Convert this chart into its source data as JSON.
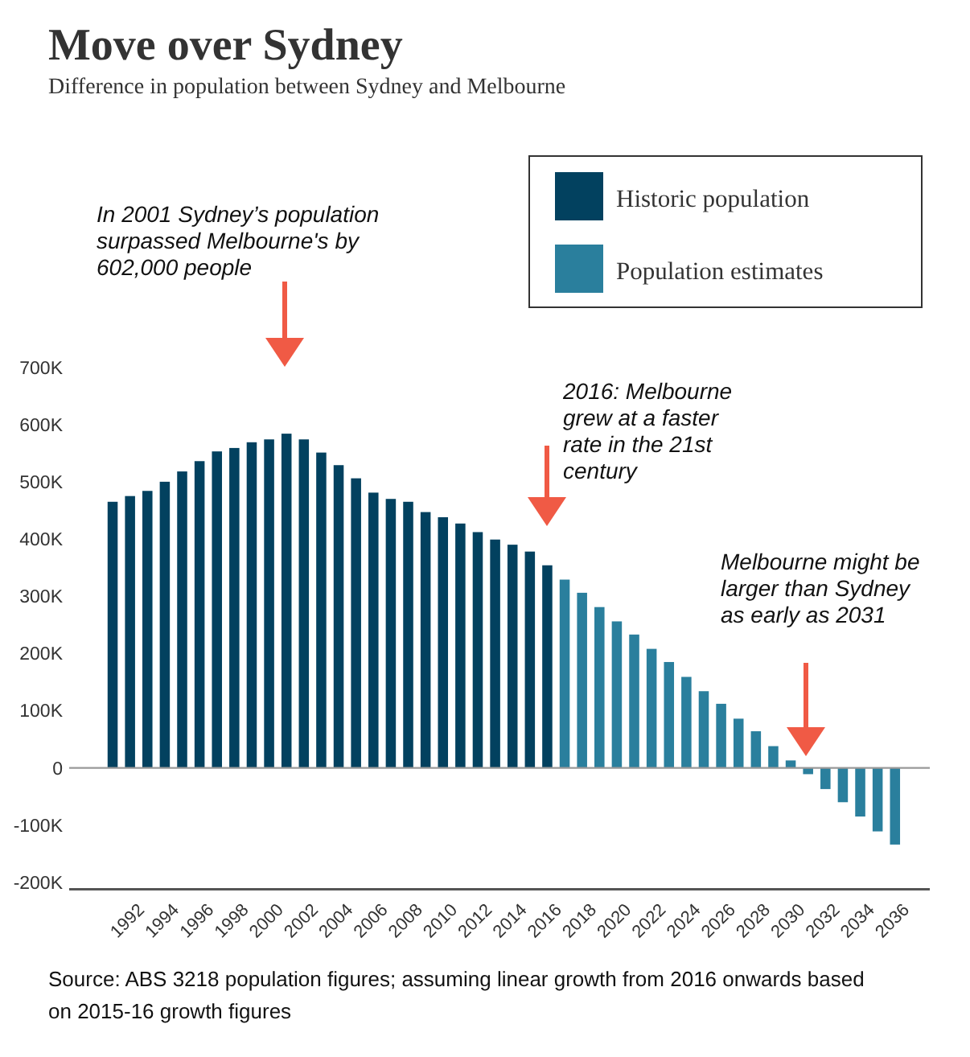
{
  "chart_data": {
    "type": "bar",
    "title": "Move over Sydney",
    "subtitle": "Difference in population between Sydney and Melbourne",
    "series": [
      {
        "name": "Historic population",
        "color": "#02415f",
        "x": [
          1991,
          1992,
          1993,
          1994,
          1995,
          1996,
          1997,
          1998,
          1999,
          2000,
          2001,
          2002,
          2003,
          2004,
          2005,
          2006,
          2007,
          2008,
          2009,
          2010,
          2011,
          2012,
          2013,
          2014,
          2015,
          2016
        ],
        "values": [
          465000,
          475000,
          484000,
          500000,
          518000,
          536000,
          553000,
          559000,
          569000,
          574000,
          584000,
          574000,
          551000,
          529000,
          506000,
          481000,
          470000,
          465000,
          447000,
          438000,
          427000,
          412000,
          399000,
          390000,
          378000,
          354000
        ]
      },
      {
        "name": "Population estimates",
        "color": "#2a7f9d",
        "x": [
          2017,
          2018,
          2019,
          2020,
          2021,
          2022,
          2023,
          2024,
          2025,
          2026,
          2027,
          2028,
          2029,
          2030,
          2031,
          2032,
          2033,
          2034,
          2035,
          2036
        ],
        "values": [
          329000,
          306000,
          281000,
          256000,
          233000,
          208000,
          185000,
          159000,
          134000,
          112000,
          86000,
          64000,
          38000,
          13000,
          -11000,
          -37000,
          -60000,
          -85000,
          -111000,
          -134000
        ]
      }
    ],
    "xlim": [
      1988.5,
      2038
    ],
    "xticks": [
      1992,
      1994,
      1996,
      1998,
      2000,
      2002,
      2004,
      2006,
      2008,
      2010,
      2012,
      2014,
      2016,
      2018,
      2020,
      2022,
      2024,
      2026,
      2028,
      2030,
      2032,
      2034,
      2036
    ],
    "ylim": [
      -212000,
      700000
    ],
    "yticks": [
      {
        "value": -200000,
        "label": "-200K"
      },
      {
        "value": -100000,
        "label": "-100K"
      },
      0,
      {
        "value": 100000,
        "label": "100K"
      },
      {
        "value": 200000,
        "label": "200K"
      },
      {
        "value": 300000,
        "label": "300K"
      },
      {
        "value": 400000,
        "label": "400K"
      },
      {
        "value": 500000,
        "label": "500K"
      },
      {
        "value": 600000,
        "label": "600K"
      },
      {
        "value": 700000,
        "label": "700K"
      }
    ],
    "ref_lines": [
      {
        "axis": "y",
        "value": 0,
        "color": "#999999"
      }
    ],
    "grid": false,
    "legend": "top right",
    "annotations": [
      "In 2001 Sydney’s population surpassed Melbourne's by 602,000 people",
      "2016: Melbourne grew at a faster rate in the 21st century",
      "Melbourne might be larger than Sydney as early as 2031",
      "Source:  ABS 3218 population figures; assuming linear growth from 2016 onwards based on 2015-16 growth figures"
    ]
  }
}
